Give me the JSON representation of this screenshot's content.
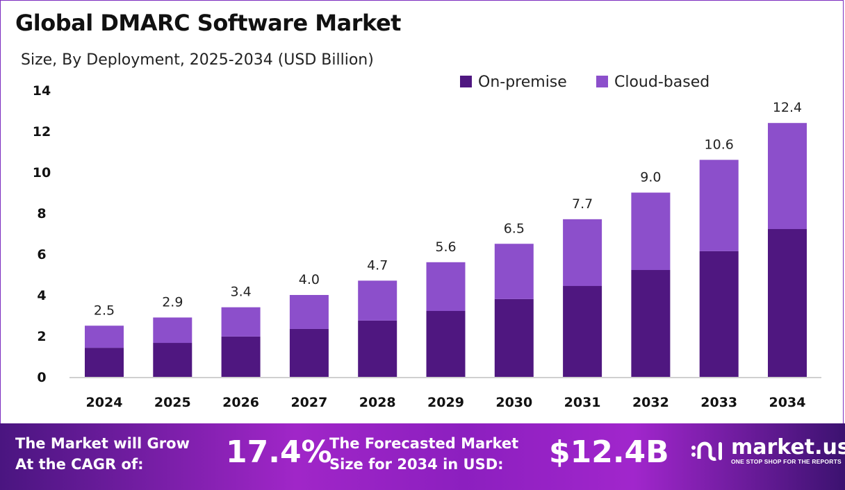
{
  "chart_data": {
    "type": "bar",
    "stacked": true,
    "title": "Global DMARC Software Market",
    "subtitle": "Size, By Deployment, 2025-2034 (USD Billion)",
    "categories": [
      "2024",
      "2025",
      "2026",
      "2027",
      "2028",
      "2029",
      "2030",
      "2031",
      "2032",
      "2033",
      "2034"
    ],
    "series": [
      {
        "name": "On-premise",
        "color": "#4f1780",
        "values": [
          1.42,
          1.66,
          1.97,
          2.34,
          2.75,
          3.22,
          3.8,
          4.44,
          5.22,
          6.14,
          7.22
        ]
      },
      {
        "name": "Cloud-based",
        "color": "#8c4fcb",
        "values": [
          1.08,
          1.24,
          1.43,
          1.66,
          1.95,
          2.38,
          2.7,
          3.26,
          3.78,
          4.46,
          5.18
        ]
      }
    ],
    "totals": [
      2.5,
      2.9,
      3.4,
      4.0,
      4.7,
      5.6,
      6.5,
      7.7,
      9.0,
      10.6,
      12.4
    ],
    "total_labels": [
      "2.5",
      "2.9",
      "3.4",
      "4.0",
      "4.7",
      "5.6",
      "6.5",
      "7.7",
      "9.0",
      "10.6",
      "12.4"
    ],
    "yticks": [
      "0",
      "2",
      "4",
      "6",
      "8",
      "10",
      "12",
      "14"
    ],
    "ylim": [
      0,
      14
    ],
    "grid": false,
    "legend": "top-right"
  },
  "footer": {
    "cagr_label_1": "The Market will Grow",
    "cagr_label_2": "At the CAGR of:",
    "cagr_value": "17.4%",
    "forecast_label_1": "The Forecasted Market",
    "forecast_label_2": "Size for 2034 in USD:",
    "forecast_value": "$12.4B",
    "logo_name": "market.us",
    "logo_tagline": "ONE STOP SHOP FOR THE REPORTS"
  }
}
